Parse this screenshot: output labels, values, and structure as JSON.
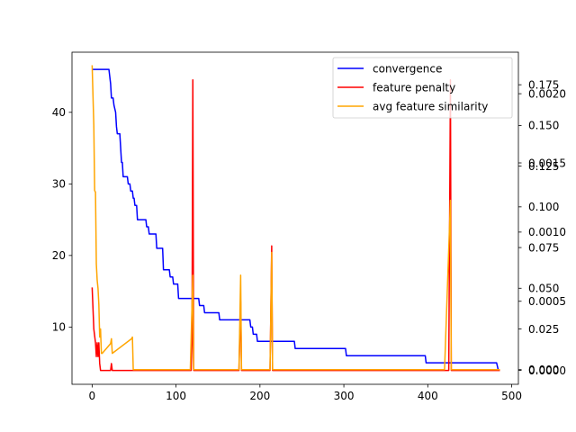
{
  "chart_data": {
    "type": "line",
    "x_ticks": [
      0,
      100,
      200,
      300,
      400,
      500
    ],
    "xlim": [
      -24,
      508
    ],
    "left_axis": {
      "ticks": [
        10,
        20,
        30,
        40
      ],
      "ylim": [
        2,
        48.4
      ]
    },
    "right_axis_1": {
      "ticks": [
        "0.000",
        "0.025",
        "0.050",
        "0.075",
        "0.100",
        "0.125",
        "0.150",
        "0.175"
      ],
      "ylim": [
        -0.009,
        0.195
      ]
    },
    "right_axis_2": {
      "ticks": [
        "0.0000",
        "0.0005",
        "0.0010",
        "0.0015",
        "0.0020"
      ],
      "ylim": [
        -0.0001,
        0.0023
      ]
    },
    "legend_position": "upper right",
    "series": [
      {
        "name": "convergence",
        "color": "#0000ff",
        "axis": "left",
        "points": [
          [
            0,
            46
          ],
          [
            20,
            46
          ],
          [
            22,
            44
          ],
          [
            23,
            42
          ],
          [
            25,
            42
          ],
          [
            26,
            41
          ],
          [
            28,
            40
          ],
          [
            29,
            38
          ],
          [
            30,
            37
          ],
          [
            33,
            37
          ],
          [
            34,
            35
          ],
          [
            35,
            33
          ],
          [
            36,
            33
          ],
          [
            37,
            31
          ],
          [
            42,
            31
          ],
          [
            43,
            30
          ],
          [
            45,
            30
          ],
          [
            46,
            29
          ],
          [
            48,
            29
          ],
          [
            49,
            28
          ],
          [
            50,
            28
          ],
          [
            51,
            27
          ],
          [
            53,
            27
          ],
          [
            54,
            25
          ],
          [
            64,
            25
          ],
          [
            65,
            24
          ],
          [
            67,
            24
          ],
          [
            68,
            23
          ],
          [
            76,
            23
          ],
          [
            77,
            21
          ],
          [
            84,
            21
          ],
          [
            85,
            18
          ],
          [
            92,
            18
          ],
          [
            93,
            17
          ],
          [
            96,
            17
          ],
          [
            97,
            16
          ],
          [
            102,
            16
          ],
          [
            103,
            14
          ],
          [
            127,
            14
          ],
          [
            128,
            13
          ],
          [
            133,
            13
          ],
          [
            134,
            12
          ],
          [
            151,
            12
          ],
          [
            152,
            11
          ],
          [
            188,
            11
          ],
          [
            189,
            10
          ],
          [
            191,
            10
          ],
          [
            192,
            9
          ],
          [
            196,
            9
          ],
          [
            197,
            8
          ],
          [
            241,
            8
          ],
          [
            242,
            7
          ],
          [
            302,
            7
          ],
          [
            303,
            6
          ],
          [
            397,
            6
          ],
          [
            398,
            5
          ],
          [
            482,
            5
          ],
          [
            484,
            4
          ],
          [
            486,
            4
          ]
        ]
      },
      {
        "name": "feature penalty",
        "color": "#ff0000",
        "axis": "right2",
        "points": [
          [
            0,
            0.0006
          ],
          [
            2,
            0.0003
          ],
          [
            4,
            0.0002
          ],
          [
            5,
            0.0001
          ],
          [
            6,
            0.0002
          ],
          [
            7,
            0.0001
          ],
          [
            8,
            0.0002
          ],
          [
            9,
            5e-05
          ],
          [
            10,
            0
          ],
          [
            22,
            0
          ],
          [
            23,
            5e-05
          ],
          [
            24,
            0
          ],
          [
            118,
            0
          ],
          [
            119,
            0.0002
          ],
          [
            120,
            0.0021
          ],
          [
            121,
            0
          ],
          [
            175,
            0
          ],
          [
            177,
            0.0005
          ],
          [
            178,
            0
          ],
          [
            212,
            0
          ],
          [
            214,
            0.0009
          ],
          [
            215,
            0
          ],
          [
            425,
            0
          ],
          [
            427,
            0.0021
          ],
          [
            428,
            0
          ],
          [
            486,
            0
          ]
        ]
      },
      {
        "name": "avg feature similarity",
        "color": "#ffa500",
        "axis": "right1",
        "points": [
          [
            0,
            0.187
          ],
          [
            2,
            0.15
          ],
          [
            3,
            0.11
          ],
          [
            4,
            0.109
          ],
          [
            5,
            0.065
          ],
          [
            6,
            0.055
          ],
          [
            7,
            0.05
          ],
          [
            8,
            0.04
          ],
          [
            9,
            0.02
          ],
          [
            10,
            0.025
          ],
          [
            11,
            0.01
          ],
          [
            12,
            0.01
          ],
          [
            22,
            0.016
          ],
          [
            23,
            0.019
          ],
          [
            24,
            0.01
          ],
          [
            47,
            0.019
          ],
          [
            48,
            0.02
          ],
          [
            49,
            0
          ],
          [
            117,
            0
          ],
          [
            120,
            0.058
          ],
          [
            121,
            0
          ],
          [
            175,
            0
          ],
          [
            177,
            0.058
          ],
          [
            178,
            0
          ],
          [
            212,
            0
          ],
          [
            214,
            0.072
          ],
          [
            215,
            0
          ],
          [
            420,
            0
          ],
          [
            427,
            0.104
          ],
          [
            428,
            0
          ],
          [
            486,
            0
          ]
        ]
      }
    ]
  }
}
